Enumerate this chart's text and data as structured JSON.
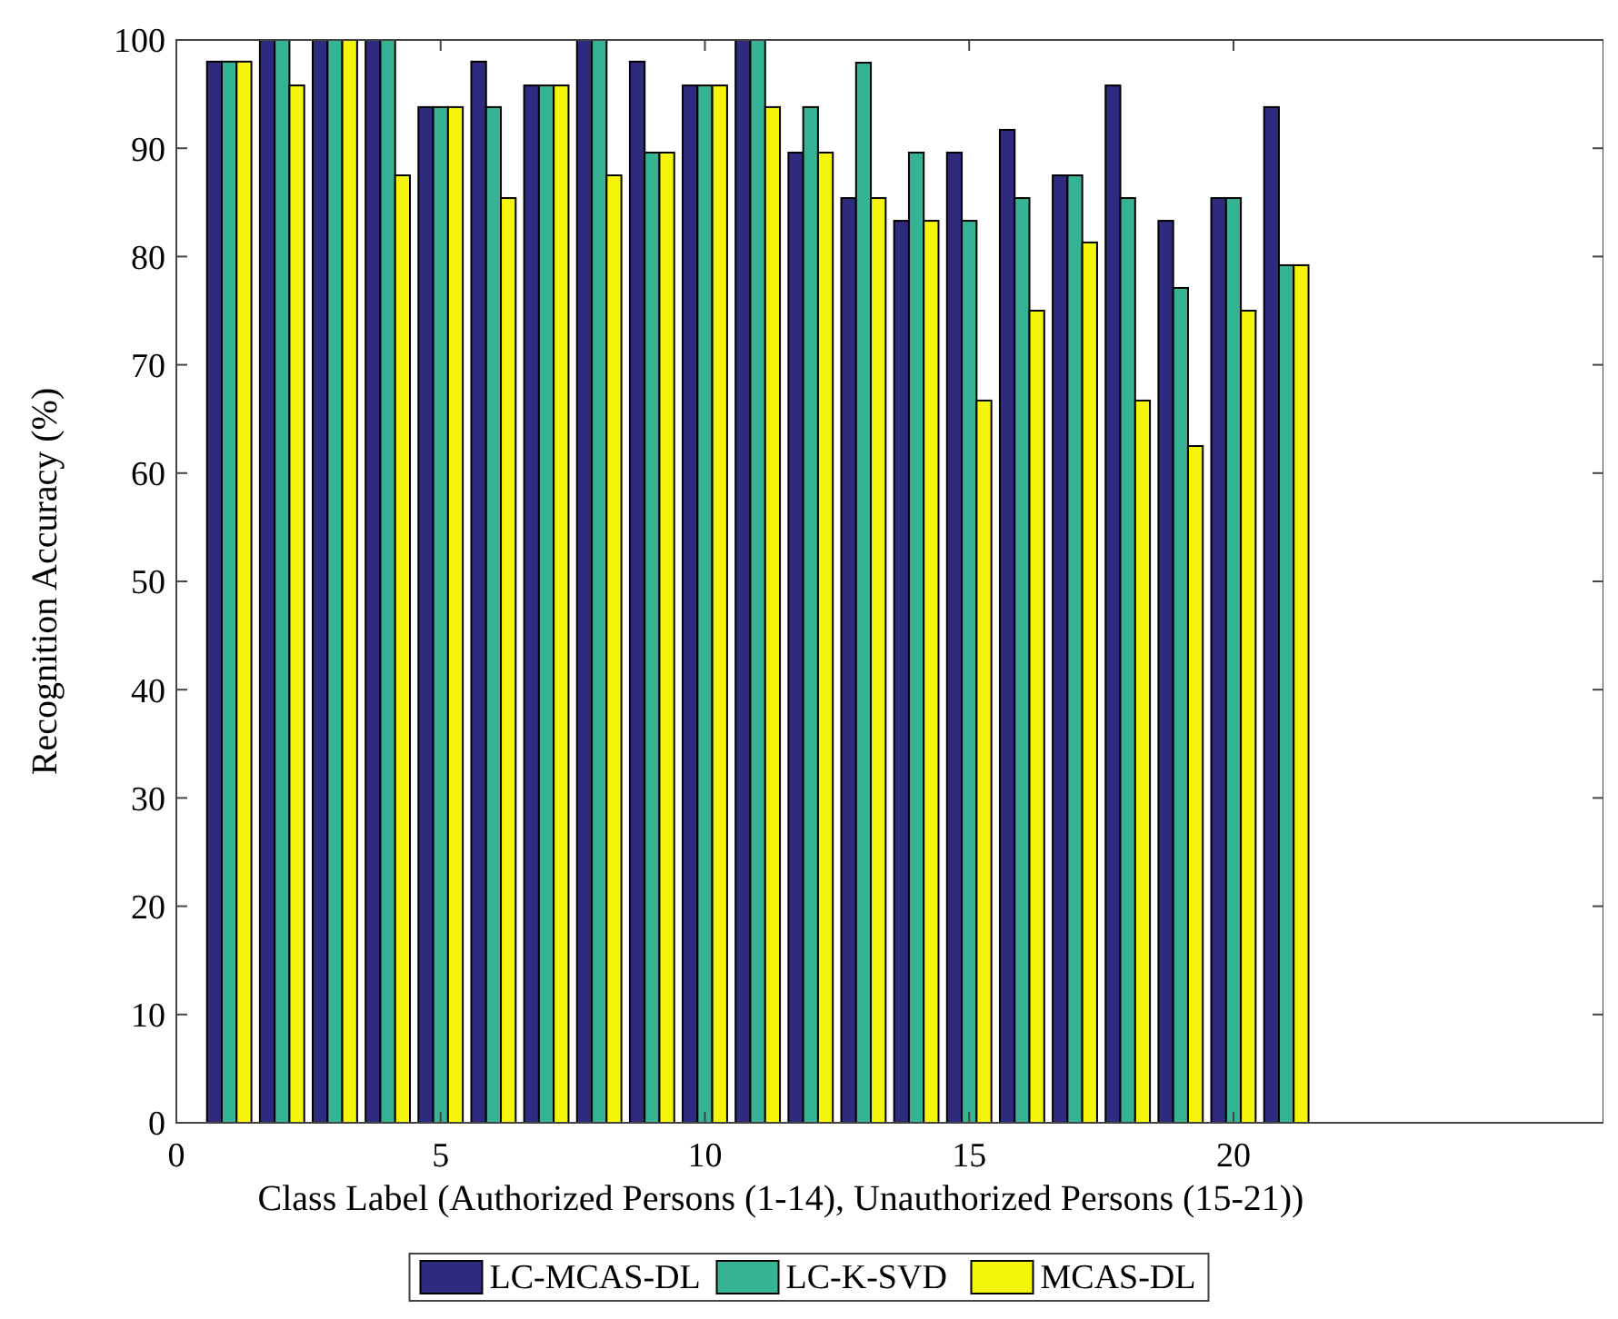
{
  "chart_data": {
    "type": "bar",
    "xlabel": "Class Label (Authorized Persons (1-14), Unauthorized Persons (15-21))",
    "ylabel": "Recognition Accuracy (%)",
    "x": [
      1,
      2,
      3,
      4,
      5,
      6,
      7,
      8,
      9,
      10,
      11,
      12,
      13,
      14,
      15,
      16,
      17,
      18,
      19,
      20,
      21
    ],
    "series": [
      {
        "name": "LC-MCAS-DL",
        "color": "#2e2a7e",
        "values": [
          98,
          100,
          100,
          100,
          93.8,
          98,
          95.8,
          100,
          98,
          95.8,
          100,
          89.6,
          85.4,
          83.3,
          89.6,
          91.7,
          87.5,
          95.8,
          83.3,
          85.4,
          93.8
        ]
      },
      {
        "name": "LC-K-SVD",
        "color": "#35b394",
        "values": [
          98,
          100,
          100,
          100,
          93.8,
          93.8,
          95.8,
          100,
          89.6,
          95.8,
          100,
          93.8,
          97.9,
          89.6,
          83.3,
          85.4,
          87.5,
          85.4,
          77.1,
          85.4,
          79.2
        ]
      },
      {
        "name": "MCAS-DL",
        "color": "#f5f50a",
        "values": [
          98,
          95.8,
          100,
          87.5,
          93.8,
          85.4,
          95.8,
          87.5,
          89.6,
          95.8,
          93.8,
          89.6,
          85.4,
          83.3,
          66.7,
          75,
          81.3,
          66.7,
          62.5,
          75,
          79.2
        ]
      }
    ],
    "xlim": [
      0,
      27
    ],
    "xticks": [
      0,
      5,
      10,
      15,
      20
    ],
    "ylim": [
      0,
      100
    ],
    "yticks": [
      0,
      10,
      20,
      30,
      40,
      50,
      60,
      70,
      80,
      90,
      100
    ],
    "grid": false,
    "legend": "bottom"
  }
}
